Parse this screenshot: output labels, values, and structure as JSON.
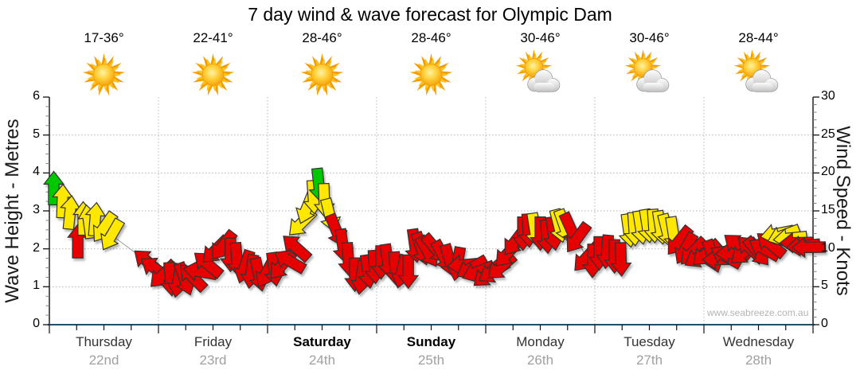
{
  "title": "7 day wind & wave forecast for Olympic Dam",
  "watermark": "www.seabreeze.com.au",
  "axes": {
    "left": {
      "label": "Wave Height - Metres",
      "ticks": [
        0,
        1,
        2,
        3,
        4,
        5,
        6
      ],
      "range": [
        0,
        6
      ]
    },
    "right": {
      "label": "Wind Speed - Knots",
      "ticks": [
        0,
        5,
        10,
        15,
        20,
        25,
        30
      ],
      "range": [
        0,
        30
      ]
    }
  },
  "days": [
    {
      "name": "Thursday",
      "date": "22nd",
      "temp": "17-36°",
      "icon": "sunny",
      "bold": false
    },
    {
      "name": "Friday",
      "date": "23rd",
      "temp": "22-41°",
      "icon": "sunny",
      "bold": false
    },
    {
      "name": "Saturday",
      "date": "24th",
      "temp": "28-46°",
      "icon": "sunny",
      "bold": true
    },
    {
      "name": "Sunday",
      "date": "25th",
      "temp": "28-46°",
      "icon": "sunny",
      "bold": true
    },
    {
      "name": "Monday",
      "date": "26th",
      "temp": "30-46°",
      "icon": "partly-cloudy",
      "bold": false
    },
    {
      "name": "Tuesday",
      "date": "27th",
      "temp": "30-46°",
      "icon": "partly-cloudy",
      "bold": false
    },
    {
      "name": "Wednesday",
      "date": "28th",
      "temp": "28-44°",
      "icon": "partly-cloudy",
      "bold": false
    }
  ],
  "colors": {
    "arrow_green": "#00c800",
    "arrow_yellow": "#ffe800",
    "arrow_red": "#e60000",
    "arrow_outline": "#333333",
    "axis_bottom": "#1c4e6e",
    "axis_dark": "#222222",
    "grid_dotted": "#b5b5b5",
    "trend_line": "#9a9a9a",
    "date_gray": "#a0a0a0",
    "watermark_gray": "#b4b4b4"
  },
  "chart_data": {
    "type": "scatter",
    "style": "wind-forecast-arrows",
    "title": "7 day wind & wave forecast for Olympic Dam",
    "xlabel": "time in days (0 = Thursday 22nd, 7 = end of Wednesday 28th)",
    "ylabel": "wind speed in knots (right axis); left axis wave height metres where 1 m = 5 kn",
    "xlim": [
      0,
      7
    ],
    "ylim_knots": [
      0,
      30
    ],
    "ylim_metres": [
      0,
      6
    ],
    "grid": "dotted horizontal each metre, dotted vertical each day boundary",
    "legend": "arrow colour = wind strength class (green/yellow/red); arrow rotation = wind direction (0 = pointing up)",
    "arrows_format": [
      "day_position",
      "knots",
      "color g|y|r",
      "direction_deg_cw_from_up"
    ],
    "arrows": [
      [
        0.04,
        18.0,
        "g",
        0
      ],
      [
        0.12,
        16.3,
        "y",
        2
      ],
      [
        0.19,
        14.8,
        "y",
        6
      ],
      [
        0.26,
        11.0,
        "r",
        0
      ],
      [
        0.31,
        14.0,
        "y",
        0
      ],
      [
        0.36,
        13.6,
        "y",
        -8
      ],
      [
        0.42,
        13.9,
        "y",
        5
      ],
      [
        0.5,
        12.8,
        "y",
        -145
      ],
      [
        0.57,
        11.8,
        "y",
        -150
      ],
      [
        0.9,
        8.3,
        "r",
        -50
      ],
      [
        0.97,
        7.4,
        "r",
        -55
      ],
      [
        1.04,
        6.6,
        "r",
        -135
      ],
      [
        1.11,
        6.0,
        "r",
        175
      ],
      [
        1.18,
        5.8,
        "r",
        -170
      ],
      [
        1.24,
        6.0,
        "r",
        160
      ],
      [
        1.31,
        6.3,
        "r",
        -45
      ],
      [
        1.38,
        7.0,
        "r",
        -80
      ],
      [
        1.45,
        8.0,
        "r",
        -50
      ],
      [
        1.52,
        9.8,
        "r",
        -135
      ],
      [
        1.59,
        10.4,
        "r",
        -142
      ],
      [
        1.66,
        9.2,
        "r",
        180
      ],
      [
        1.72,
        8.6,
        "r",
        175
      ],
      [
        1.79,
        7.6,
        "r",
        -162
      ],
      [
        1.85,
        7.0,
        "r",
        -172
      ],
      [
        1.92,
        6.6,
        "r",
        168
      ],
      [
        1.99,
        6.9,
        "r",
        -152
      ],
      [
        2.06,
        7.3,
        "r",
        172
      ],
      [
        2.13,
        7.8,
        "r",
        -140
      ],
      [
        2.2,
        8.4,
        "r",
        -60
      ],
      [
        2.26,
        10.2,
        "r",
        -48
      ],
      [
        2.31,
        13.4,
        "y",
        -135
      ],
      [
        2.36,
        15.4,
        "y",
        -158
      ],
      [
        2.42,
        16.8,
        "y",
        176
      ],
      [
        2.47,
        18.4,
        "g",
        174
      ],
      [
        2.52,
        16.4,
        "y",
        178
      ],
      [
        2.57,
        14.4,
        "y",
        166
      ],
      [
        2.63,
        12.4,
        "r",
        158
      ],
      [
        2.69,
        10.4,
        "r",
        172
      ],
      [
        2.74,
        8.6,
        "r",
        176
      ],
      [
        2.8,
        6.6,
        "r",
        180
      ],
      [
        2.86,
        6.2,
        "r",
        -172
      ],
      [
        2.92,
        7.0,
        "r",
        172
      ],
      [
        2.98,
        7.6,
        "r",
        176
      ],
      [
        3.04,
        8.2,
        "r",
        180
      ],
      [
        3.1,
        8.4,
        "r",
        172
      ],
      [
        3.17,
        7.4,
        "r",
        176
      ],
      [
        3.23,
        7.0,
        "r",
        -166
      ],
      [
        3.29,
        7.0,
        "r",
        180
      ],
      [
        3.35,
        10.4,
        "r",
        172
      ],
      [
        3.41,
        10.0,
        "r",
        162
      ],
      [
        3.47,
        9.6,
        "r",
        150
      ],
      [
        3.54,
        10.0,
        "r",
        140
      ],
      [
        3.61,
        9.0,
        "r",
        152
      ],
      [
        3.67,
        8.4,
        "r",
        164
      ],
      [
        3.74,
        8.0,
        "r",
        -170
      ],
      [
        3.8,
        7.9,
        "r",
        -95
      ],
      [
        3.87,
        7.5,
        "r",
        -120
      ],
      [
        3.93,
        7.0,
        "r",
        -112
      ],
      [
        4.01,
        6.6,
        "r",
        -130
      ],
      [
        4.07,
        7.0,
        "r",
        -122
      ],
      [
        4.14,
        7.6,
        "r",
        -131
      ],
      [
        4.2,
        9.4,
        "r",
        -138
      ],
      [
        4.27,
        11.0,
        "r",
        -143
      ],
      [
        4.34,
        12.0,
        "r",
        180
      ],
      [
        4.39,
        12.4,
        "r",
        176
      ],
      [
        4.45,
        12.5,
        "y",
        171
      ],
      [
        4.5,
        12.0,
        "r",
        180
      ],
      [
        4.56,
        11.6,
        "r",
        176
      ],
      [
        4.62,
        12.0,
        "r",
        172
      ],
      [
        4.67,
        13.0,
        "y",
        166
      ],
      [
        4.72,
        13.0,
        "y",
        161
      ],
      [
        4.78,
        12.6,
        "r",
        156
      ],
      [
        4.84,
        11.4,
        "r",
        -144
      ],
      [
        4.92,
        8.8,
        "r",
        -138
      ],
      [
        4.98,
        8.4,
        "r",
        -179
      ],
      [
        5.04,
        9.4,
        "r",
        180
      ],
      [
        5.11,
        9.6,
        "r",
        -175
      ],
      [
        5.18,
        9.0,
        "r",
        180
      ],
      [
        5.24,
        8.6,
        "r",
        178
      ],
      [
        5.31,
        12.4,
        "y",
        172
      ],
      [
        5.36,
        12.6,
        "y",
        176
      ],
      [
        5.42,
        12.8,
        "y",
        171
      ],
      [
        5.48,
        13.0,
        "y",
        171
      ],
      [
        5.54,
        13.0,
        "y",
        176
      ],
      [
        5.6,
        12.8,
        "y",
        171
      ],
      [
        5.66,
        12.4,
        "y",
        166
      ],
      [
        5.72,
        12.0,
        "y",
        171
      ],
      [
        5.77,
        11.0,
        "r",
        -141
      ],
      [
        5.83,
        10.0,
        "r",
        -151
      ],
      [
        5.9,
        9.6,
        "r",
        -136
      ],
      [
        5.96,
        9.0,
        "r",
        -121
      ],
      [
        6.02,
        9.4,
        "r",
        -131
      ],
      [
        6.08,
        9.0,
        "r",
        161
      ],
      [
        6.14,
        8.6,
        "r",
        -91
      ],
      [
        6.2,
        9.0,
        "r",
        -61
      ],
      [
        6.26,
        9.4,
        "r",
        -91
      ],
      [
        6.31,
        10.4,
        "r",
        -51
      ],
      [
        6.37,
        9.6,
        "r",
        -131
      ],
      [
        6.43,
        10.0,
        "r",
        -46
      ],
      [
        6.49,
        9.6,
        "r",
        141
      ],
      [
        6.55,
        10.0,
        "r",
        -61
      ],
      [
        6.61,
        10.6,
        "r",
        -51
      ],
      [
        6.67,
        12.0,
        "y",
        -101
      ],
      [
        6.73,
        11.8,
        "y",
        -111
      ],
      [
        6.79,
        11.4,
        "y",
        -96
      ],
      [
        6.85,
        10.8,
        "r",
        -91
      ],
      [
        6.91,
        10.4,
        "r",
        -96
      ],
      [
        6.96,
        10.2,
        "r",
        -91
      ]
    ]
  }
}
